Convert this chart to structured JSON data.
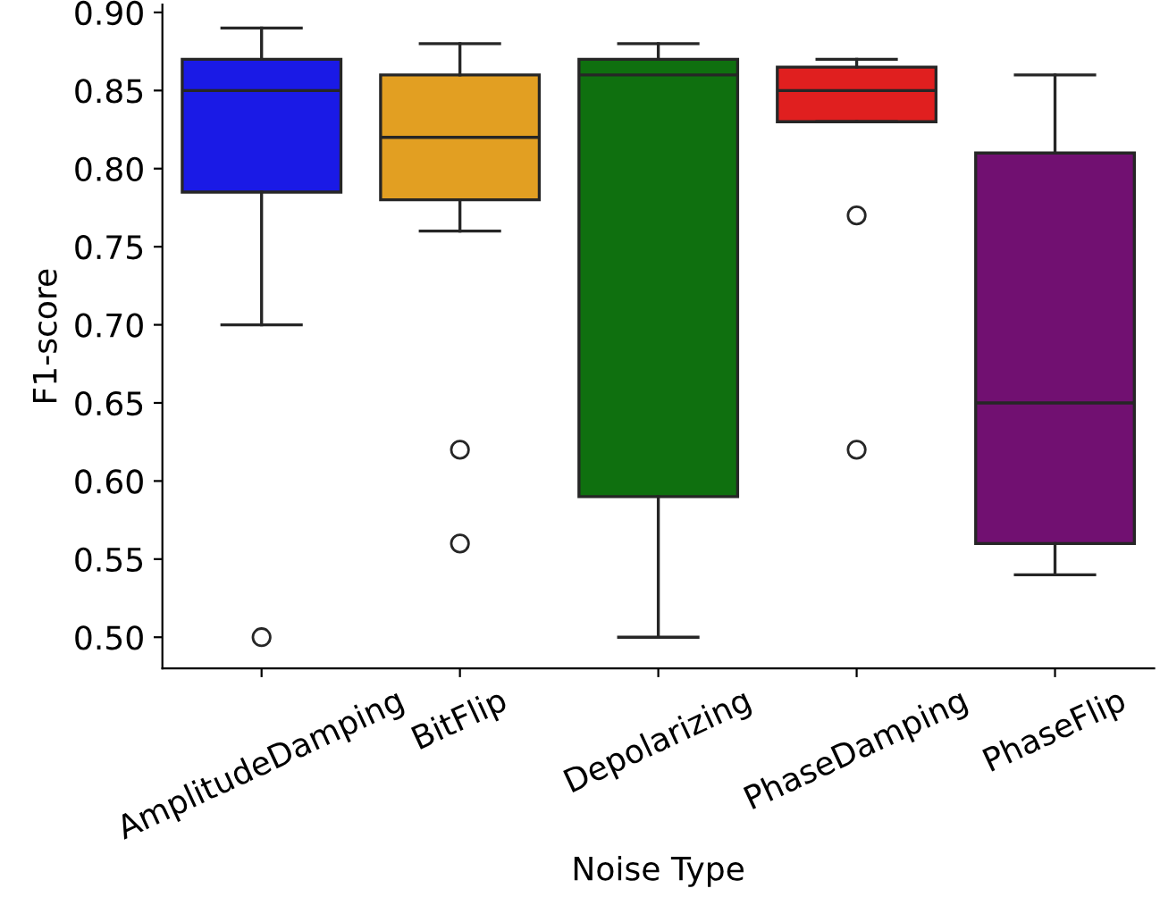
{
  "chart_data": {
    "type": "box",
    "xlabel": "Noise Type",
    "ylabel": "F1-score",
    "categories": [
      "AmplitudeDamping",
      "BitFlip",
      "Depolarizing",
      "PhaseDamping",
      "PhaseFlip"
    ],
    "colors": [
      "#1a1ae6",
      "#e29f22",
      "#0f700f",
      "#e01f1f",
      "#711071"
    ],
    "boxes": [
      {
        "low": 0.7,
        "q1": 0.785,
        "median": 0.85,
        "q3": 0.87,
        "high": 0.89,
        "outliers": [
          0.5
        ]
      },
      {
        "low": 0.76,
        "q1": 0.78,
        "median": 0.82,
        "q3": 0.86,
        "high": 0.88,
        "outliers": [
          0.62,
          0.56
        ]
      },
      {
        "low": 0.5,
        "q1": 0.59,
        "median": 0.86,
        "q3": 0.87,
        "high": 0.88
      },
      {
        "low": 0.83,
        "q1": 0.83,
        "median": 0.85,
        "q3": 0.865,
        "high": 0.87,
        "outliers": [
          0.77,
          0.62
        ]
      },
      {
        "low": 0.54,
        "q1": 0.56,
        "median": 0.65,
        "q3": 0.81,
        "high": 0.86
      }
    ],
    "ylim": [
      0.48,
      0.905
    ],
    "yticks": [
      {
        "value": 0.5,
        "label": "0.50"
      },
      0.55,
      {
        "value": 0.6,
        "label": "0.60"
      },
      0.65,
      {
        "value": 0.7,
        "label": "0.70"
      },
      0.75,
      {
        "value": 0.8,
        "label": "0.80"
      },
      0.85,
      {
        "value": 0.9,
        "label": "0.90"
      }
    ]
  }
}
